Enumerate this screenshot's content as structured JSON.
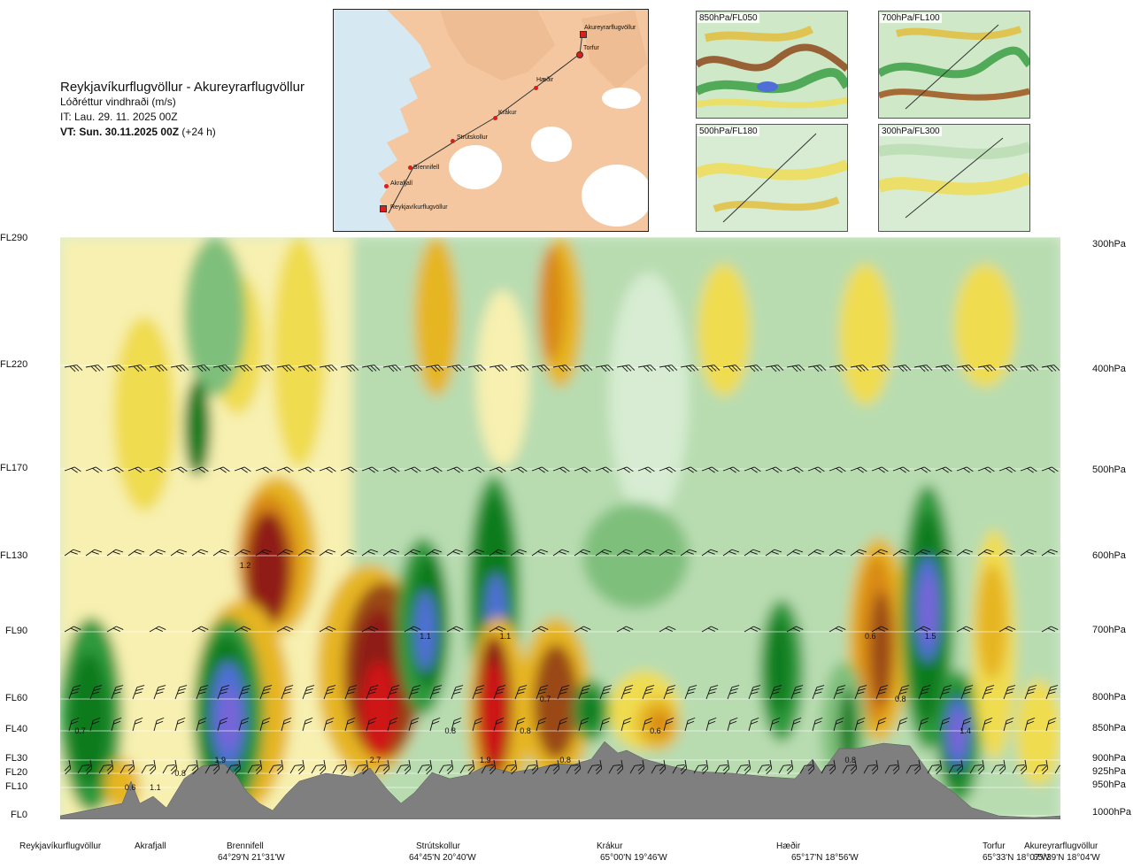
{
  "header": {
    "title": "Reykjavíkurflugvöllur - Akureyrarflugvöllur",
    "subtitle": "Lóðréttur vindhraði (m/s)",
    "it": "IT: Lau. 29. 11. 2025 00Z",
    "vt": "VT: Sun. 30.11.2025 00Z",
    "vt_lead": "(+24 h)"
  },
  "map": {
    "stations": [
      "Akureyrarflugvöllur",
      "Torfur",
      "Hæðir",
      "Krákur",
      "Strútskollur",
      "Brennifell",
      "Akrafjall",
      "Reykjavíkurflugvöllur"
    ],
    "colors": {
      "land": "#f4c7a0",
      "sea": "#a9d2ea",
      "ice": "#ffffff",
      "route": "#333333",
      "point": "#e01b1b"
    }
  },
  "thumbs": [
    {
      "label": "850hPa/FL050"
    },
    {
      "label": "700hPa/FL100"
    },
    {
      "label": "500hPa/FL180"
    },
    {
      "label": "300hPa/FL300"
    }
  ],
  "chart_data": {
    "type": "heatmap",
    "title": "Reykjavíkurflugvöllur - Akureyrarflugvöllur",
    "quantity": "Lóðréttur vindhraði (m/s)",
    "y_levels_fl": [
      "FL290",
      "FL220",
      "FL170",
      "FL130",
      "FL90",
      "FL60",
      "FL40",
      "FL30",
      "FL20",
      "FL10",
      "FL0"
    ],
    "y_levels_hpa": [
      "300hPa",
      "400hPa",
      "500hPa",
      "600hPa",
      "700hPa",
      "800hPa",
      "850hPa",
      "900hPa",
      "925hPa",
      "950hPa",
      "1000hPa"
    ],
    "x_locations": [
      {
        "name": "Reykjavíkurflugvöllur",
        "coord": "",
        "x": 0.0
      },
      {
        "name": "Akrafjall",
        "coord": "",
        "x": 0.09
      },
      {
        "name": "Brennifell",
        "coord": "64°29'N 21°31'W",
        "x": 0.19
      },
      {
        "name": "Strútskollur",
        "coord": "64°45'N 20°40'W",
        "x": 0.38
      },
      {
        "name": "Krákur",
        "coord": "65°00'N 19°46'W",
        "x": 0.57
      },
      {
        "name": "Hæðir",
        "coord": "65°17'N 18°56'W",
        "x": 0.78
      },
      {
        "name": "Torfur",
        "coord": "65°33'N 18°07'W",
        "x": 0.94
      },
      {
        "name": "Akureyrarflugvöllur",
        "coord": "65°39'N 18°04'W",
        "x": 1.0
      }
    ],
    "value_labels": [
      {
        "text": "1.2",
        "x": 0.185,
        "y": "FL125"
      },
      {
        "text": "1.1",
        "x": 0.365,
        "y": "FL88"
      },
      {
        "text": "1.1",
        "x": 0.445,
        "y": "FL88"
      },
      {
        "text": "0.6",
        "x": 0.81,
        "y": "FL88"
      },
      {
        "text": "1.5",
        "x": 0.87,
        "y": "FL88"
      },
      {
        "text": "0.7",
        "x": 0.485,
        "y": "FL60"
      },
      {
        "text": "0.8",
        "x": 0.84,
        "y": "FL60"
      },
      {
        "text": "0.7",
        "x": 0.02,
        "y": "FL40"
      },
      {
        "text": "0.8",
        "x": 0.39,
        "y": "FL40"
      },
      {
        "text": "0.8",
        "x": 0.465,
        "y": "FL40"
      },
      {
        "text": "0.6",
        "x": 0.595,
        "y": "FL40"
      },
      {
        "text": "1.4",
        "x": 0.905,
        "y": "FL40"
      },
      {
        "text": "1.9",
        "x": 0.16,
        "y": "FL30"
      },
      {
        "text": "2.7",
        "x": 0.315,
        "y": "FL30"
      },
      {
        "text": "1.9",
        "x": 0.425,
        "y": "FL30"
      },
      {
        "text": "0.8",
        "x": 0.505,
        "y": "FL30"
      },
      {
        "text": "0.8",
        "x": 0.79,
        "y": "FL30"
      },
      {
        "text": "0.8",
        "x": 0.12,
        "y": "FL20"
      },
      {
        "text": "0.6",
        "x": 0.07,
        "y": "FL10"
      },
      {
        "text": "1.1",
        "x": 0.095,
        "y": "FL10"
      }
    ],
    "colors": {
      "green_dark": "#0a7a1c",
      "green": "#2f9a3c",
      "green_mid": "#7fbf7b",
      "green_light": "#b8dcb0",
      "green_pale": "#d7ecd2",
      "blue": "#4f6fd6",
      "violet": "#7a63d8",
      "yellow_pale": "#f7f0b0",
      "yellow": "#f0dc50",
      "gold": "#e6b520",
      "orange": "#d98a18",
      "brown": "#9a4a12",
      "dark_red": "#8f1d12",
      "red": "#cf1515",
      "terrain": "#7f7f7f"
    }
  }
}
